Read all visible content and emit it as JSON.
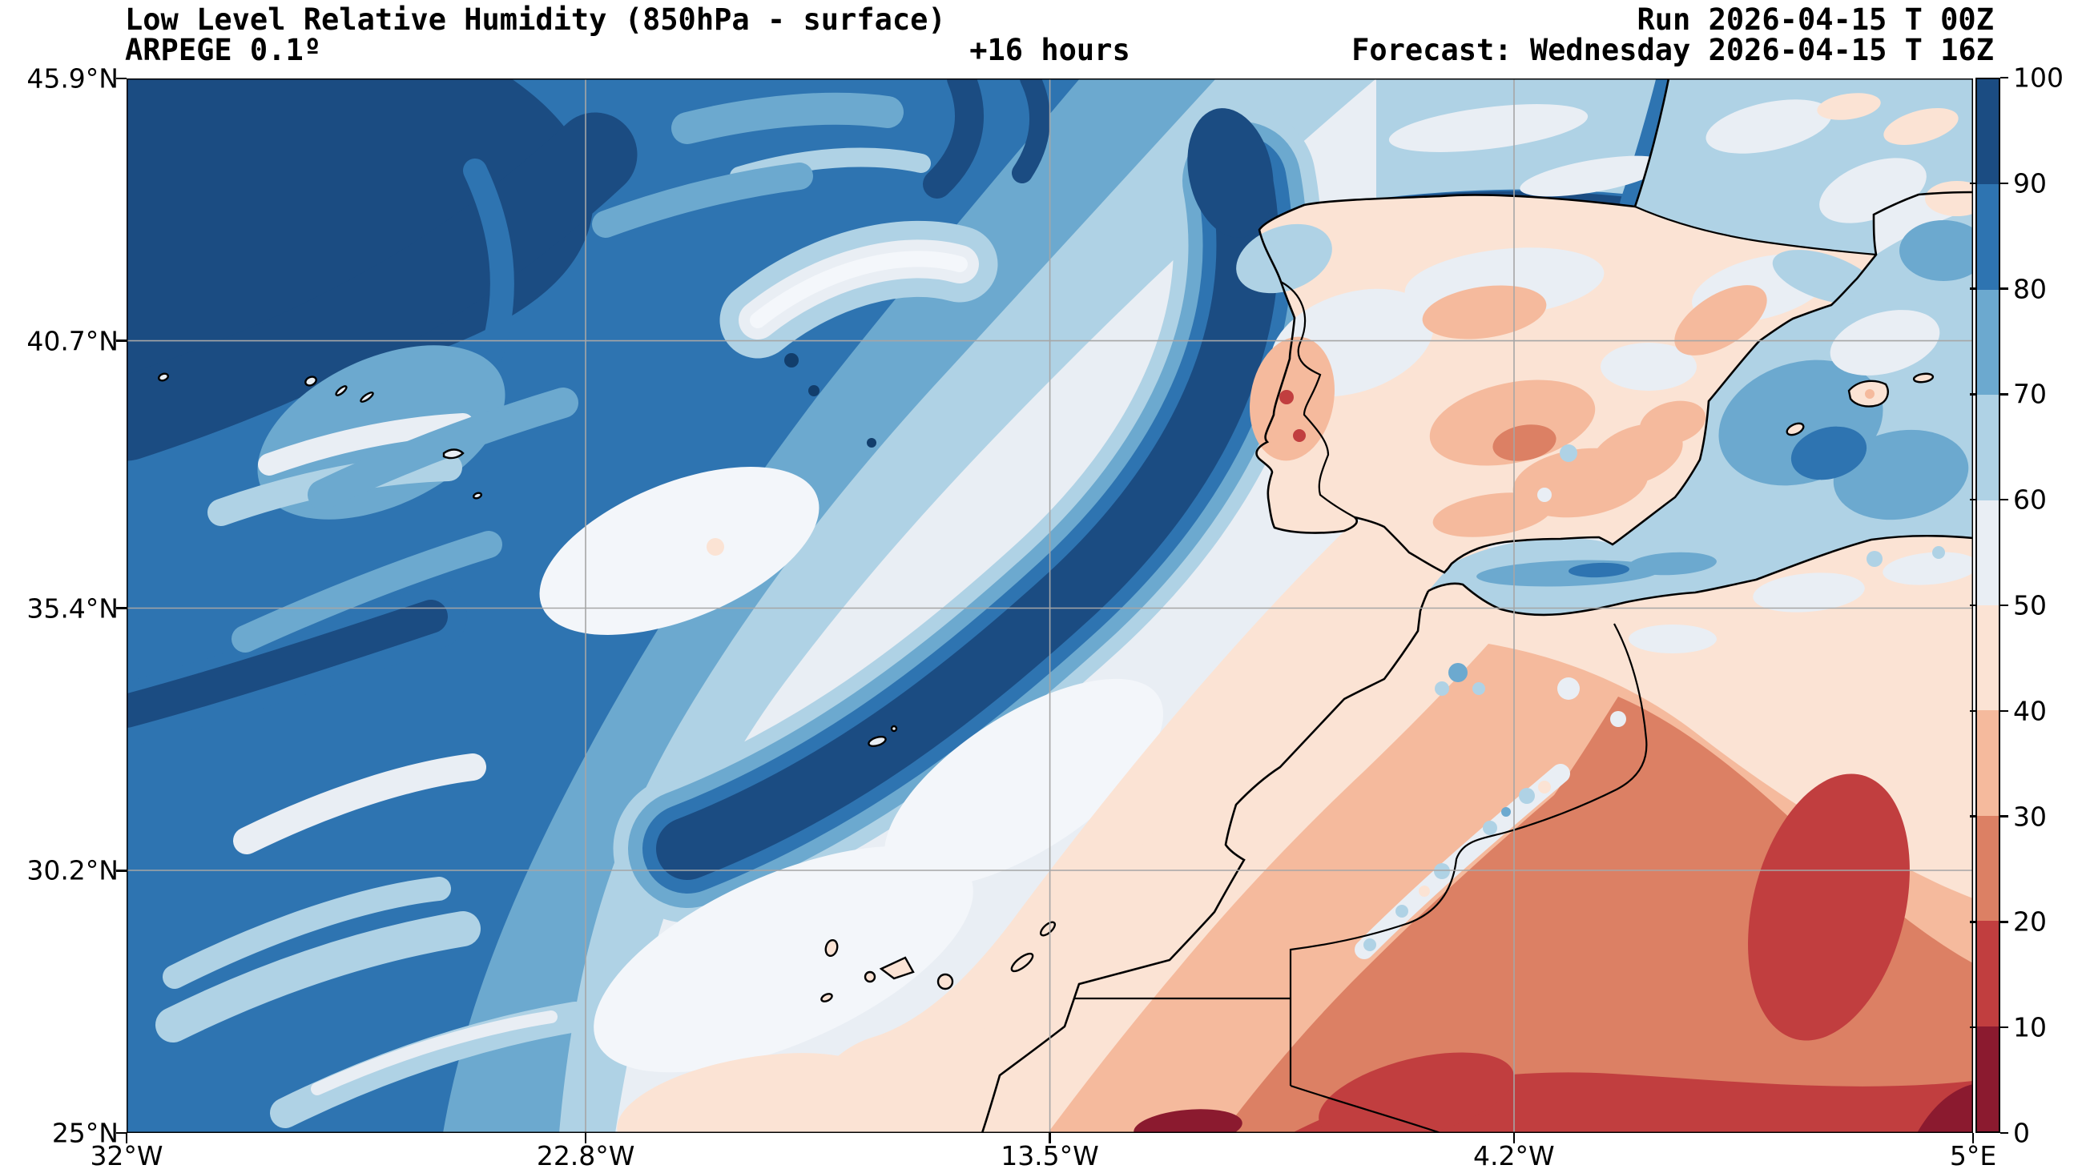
{
  "header": {
    "title": "Low Level Relative Humidity (850hPa - surface)",
    "model": "ARPEGE 0.1º",
    "lead": "+16 hours",
    "run": "Run 2026-04-15 T 00Z",
    "forecast": "Forecast: Wednesday 2026-04-15 T 16Z"
  },
  "axes": {
    "y": {
      "min": 25,
      "max": 45.9,
      "ticks": [
        {
          "value": 45.9,
          "label": "45.9°N"
        },
        {
          "value": 40.7,
          "label": "40.7°N"
        },
        {
          "value": 35.4,
          "label": "35.4°N"
        },
        {
          "value": 30.2,
          "label": "30.2°N"
        },
        {
          "value": 25,
          "label": "25°N"
        }
      ]
    },
    "x": {
      "min": -32,
      "max": 5,
      "ticks": [
        {
          "value": -32,
          "label": "32°W"
        },
        {
          "value": -22.8,
          "label": "22.8°W"
        },
        {
          "value": -13.5,
          "label": "13.5°W"
        },
        {
          "value": -4.2,
          "label": "4.2°W"
        },
        {
          "value": 5,
          "label": "5°E"
        }
      ]
    }
  },
  "colorbar": {
    "min": 0,
    "max": 100,
    "tick_values": [
      0,
      10,
      20,
      30,
      40,
      50,
      60,
      70,
      80,
      90,
      100
    ],
    "segments_top_to_bottom": [
      {
        "range": "90-100",
        "color": "#1B4C82"
      },
      {
        "range": "80-90",
        "color": "#2E74B1"
      },
      {
        "range": "70-80",
        "color": "#6CA9CF"
      },
      {
        "range": "60-70",
        "color": "#AFD2E5"
      },
      {
        "range": "50-60",
        "color": "#E9EEF4"
      },
      {
        "range": "40-50",
        "color": "#FBE3D4"
      },
      {
        "range": "30-40",
        "color": "#F5BA9D"
      },
      {
        "range": "20-30",
        "color": "#DC8064"
      },
      {
        "range": "10-20",
        "color": "#C13E3F"
      },
      {
        "range": "0-10",
        "color": "#8B1A2F"
      }
    ]
  },
  "chart_data": {
    "type": "heatmap",
    "subtype": "filled-contour-geographic-map",
    "title": "Low Level Relative Humidity (850hPa - surface)",
    "model": "ARPEGE 0.1º",
    "run": "2026-04-15 T 00Z",
    "forecast_valid": "Wednesday 2026-04-15 T 16Z",
    "lead_time_hours": 16,
    "variable": "relative humidity",
    "units": "%",
    "extent": {
      "lon": [
        -32,
        5
      ],
      "lat": [
        25,
        45.9
      ]
    },
    "levels": [
      0,
      10,
      20,
      30,
      40,
      50,
      60,
      70,
      80,
      90,
      100
    ],
    "palette_low_to_high": [
      "#8B1A2F",
      "#C13E3F",
      "#DC8064",
      "#F5BA9D",
      "#FBE3D4",
      "#E9EEF4",
      "#AFD2E5",
      "#6CA9CF",
      "#2E74B1",
      "#1B4C82"
    ],
    "grid": true,
    "xticks_lon": [
      -32,
      -22.8,
      -13.5,
      -4.2,
      5
    ],
    "yticks_lat": [
      45.9,
      40.7,
      35.4,
      30.2,
      25
    ],
    "features": [
      "Very humid air (80-100%) over the NW Atlantic half of the domain with dark 90-100% bands aligned SW-NE",
      "A long 90-100% band stretches from NW of Galicia toward the central Atlantic",
      "A pale dry-neutral swath (40-60%) crosses the central Atlantic through Madeira and the Canary Islands",
      "Iberian Peninsula mostly 40-50% with drier 30-40% patches inland and small 10-20% spots in southern Portugal",
      "Alboran Sea and western Mediterranean at 60-80%",
      "Morocco 30-50% with moist spots over the Atlas and Rif mountains",
      "Sahara / southern Algeria very dry, 10-30% with 0-10% pockets near the bottom edge"
    ]
  }
}
